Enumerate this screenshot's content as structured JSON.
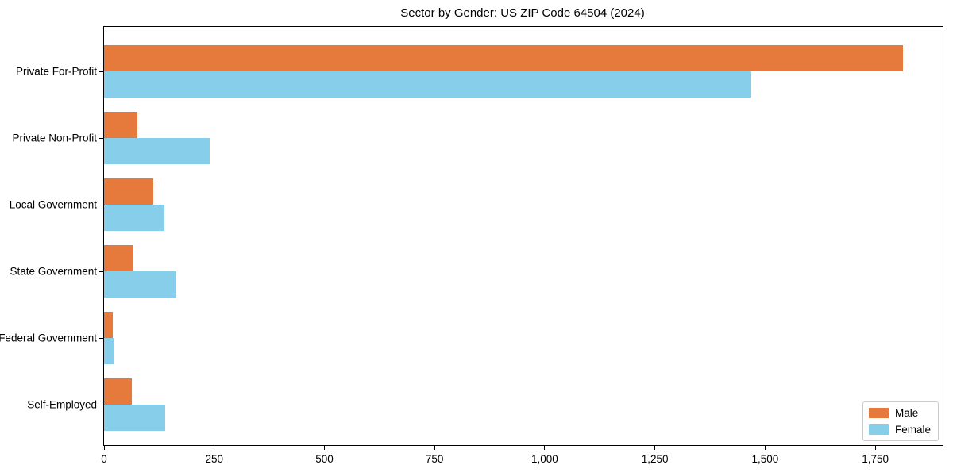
{
  "title": "Sector by Gender: US ZIP Code 64504 (2024)",
  "chart_data": {
    "type": "bar",
    "orientation": "horizontal",
    "title": "Sector by Gender: US ZIP Code 64504 (2024)",
    "categories": [
      "Private For-Profit",
      "Private Non-Profit",
      "Local Government",
      "State Government",
      "Federal Government",
      "Self-Employed"
    ],
    "series": [
      {
        "name": "Male",
        "color": "#e6793c",
        "values": [
          1812,
          75,
          111,
          67,
          19,
          63
        ]
      },
      {
        "name": "Female",
        "color": "#87ceeb",
        "values": [
          1469,
          240,
          137,
          164,
          23,
          138
        ]
      }
    ],
    "xlabel": "",
    "ylabel": "",
    "xlim": [
      0,
      1903
    ],
    "x_ticks": [
      0,
      250,
      500,
      750,
      1000,
      1250,
      1500,
      1750
    ],
    "x_tick_labels": [
      "0",
      "250",
      "500",
      "750",
      "1,000",
      "1,250",
      "1,500",
      "1,750"
    ],
    "grid": false,
    "legend_position": "lower right"
  },
  "legend": {
    "items": [
      {
        "label": "Male",
        "color": "#e6793c"
      },
      {
        "label": "Female",
        "color": "#87ceeb"
      }
    ]
  }
}
